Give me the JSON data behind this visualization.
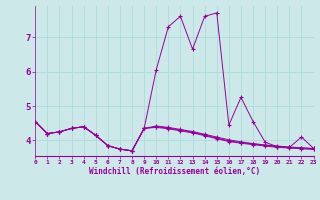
{
  "xlabel": "Windchill (Refroidissement éolien,°C)",
  "background_color": "#cce8e8",
  "line_color": "#990099",
  "grid_color": "#aadddd",
  "x_ticks": [
    0,
    1,
    2,
    3,
    4,
    5,
    6,
    7,
    8,
    9,
    10,
    11,
    12,
    13,
    14,
    15,
    16,
    17,
    18,
    19,
    20,
    21,
    22,
    23
  ],
  "ylim": [
    3.55,
    7.9
  ],
  "xlim": [
    0,
    23
  ],
  "yticks": [
    4,
    5,
    6,
    7
  ],
  "lines": [
    [
      4.55,
      4.2,
      4.25,
      4.35,
      4.4,
      4.15,
      3.85,
      3.75,
      3.7,
      4.35,
      6.05,
      7.3,
      7.6,
      6.65,
      7.6,
      7.7,
      4.45,
      5.25,
      4.55,
      3.95,
      3.82,
      3.8,
      4.1,
      3.77
    ],
    [
      4.55,
      4.2,
      4.25,
      4.35,
      4.4,
      4.15,
      3.85,
      3.75,
      3.7,
      4.35,
      4.38,
      4.34,
      4.28,
      4.22,
      4.14,
      4.05,
      3.97,
      3.92,
      3.88,
      3.84,
      3.8,
      3.78,
      3.76,
      3.74
    ],
    [
      4.55,
      4.2,
      4.25,
      4.35,
      4.4,
      4.15,
      3.85,
      3.75,
      3.7,
      4.35,
      4.4,
      4.36,
      4.3,
      4.24,
      4.16,
      4.07,
      3.99,
      3.94,
      3.9,
      3.86,
      3.82,
      3.8,
      3.78,
      3.76
    ],
    [
      4.55,
      4.2,
      4.25,
      4.35,
      4.4,
      4.15,
      3.85,
      3.75,
      3.7,
      4.35,
      4.42,
      4.38,
      4.32,
      4.26,
      4.18,
      4.1,
      4.02,
      3.96,
      3.91,
      3.87,
      3.84,
      3.81,
      3.79,
      3.77
    ]
  ]
}
